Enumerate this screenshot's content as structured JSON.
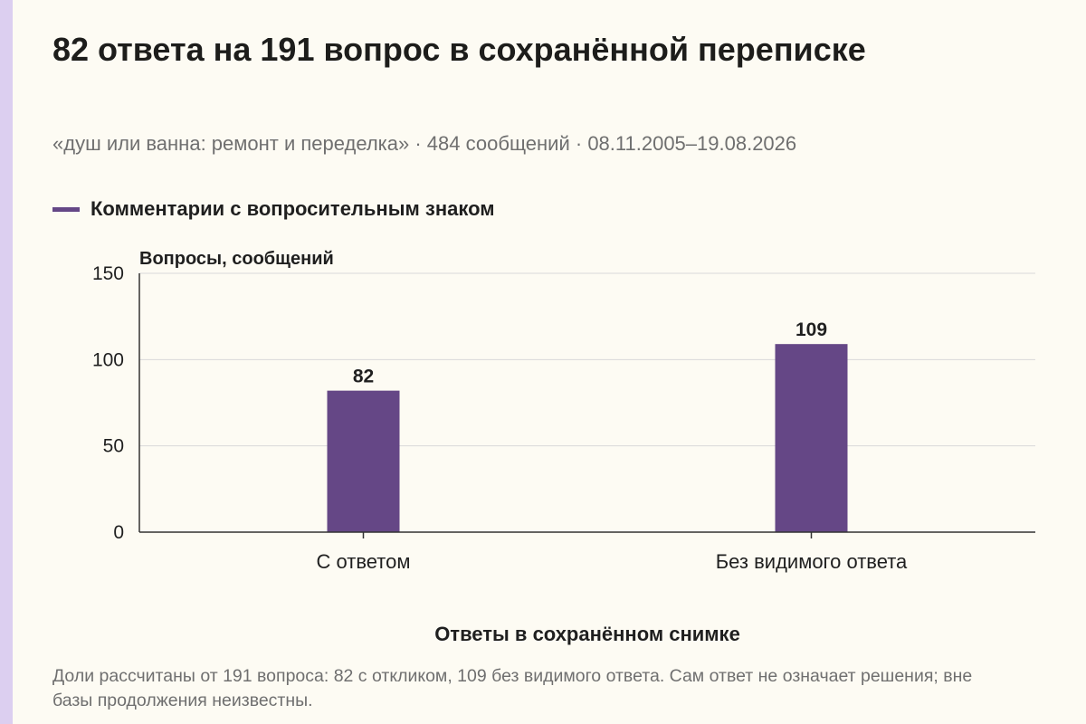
{
  "title": "82 ответа на 191 вопрос в сохранённой переписке",
  "subtitle": "«душ или ванна: ремонт и переделка» · 484 сообщений · 08.11.2005–19.08.2026",
  "note": "Доли рассчитаны от 191 вопроса: 82 с откликом, 109 без видимого ответа. Сам ответ не означает решения; вне базы продолжения неизвестны.",
  "colors": {
    "bar": "#654786",
    "grid": "#d9d9d9",
    "axis": "#333333"
  },
  "chart_data": {
    "type": "bar",
    "categories": [
      "С ответом",
      "Без видимого ответа"
    ],
    "series": [
      {
        "name": "Комментарии с вопросительным знаком",
        "values": [
          82,
          109
        ]
      }
    ],
    "data_labels": [
      "82",
      "109"
    ],
    "ylabel": "Вопросы, сообщений",
    "xlabel": "Ответы в сохранённом снимке",
    "ylim": [
      0,
      150
    ],
    "yticks": [
      0,
      50,
      100,
      150
    ],
    "ytick_labels": [
      "0",
      "50",
      "100",
      "150"
    ],
    "grid": true,
    "legend_position": "top-left"
  }
}
